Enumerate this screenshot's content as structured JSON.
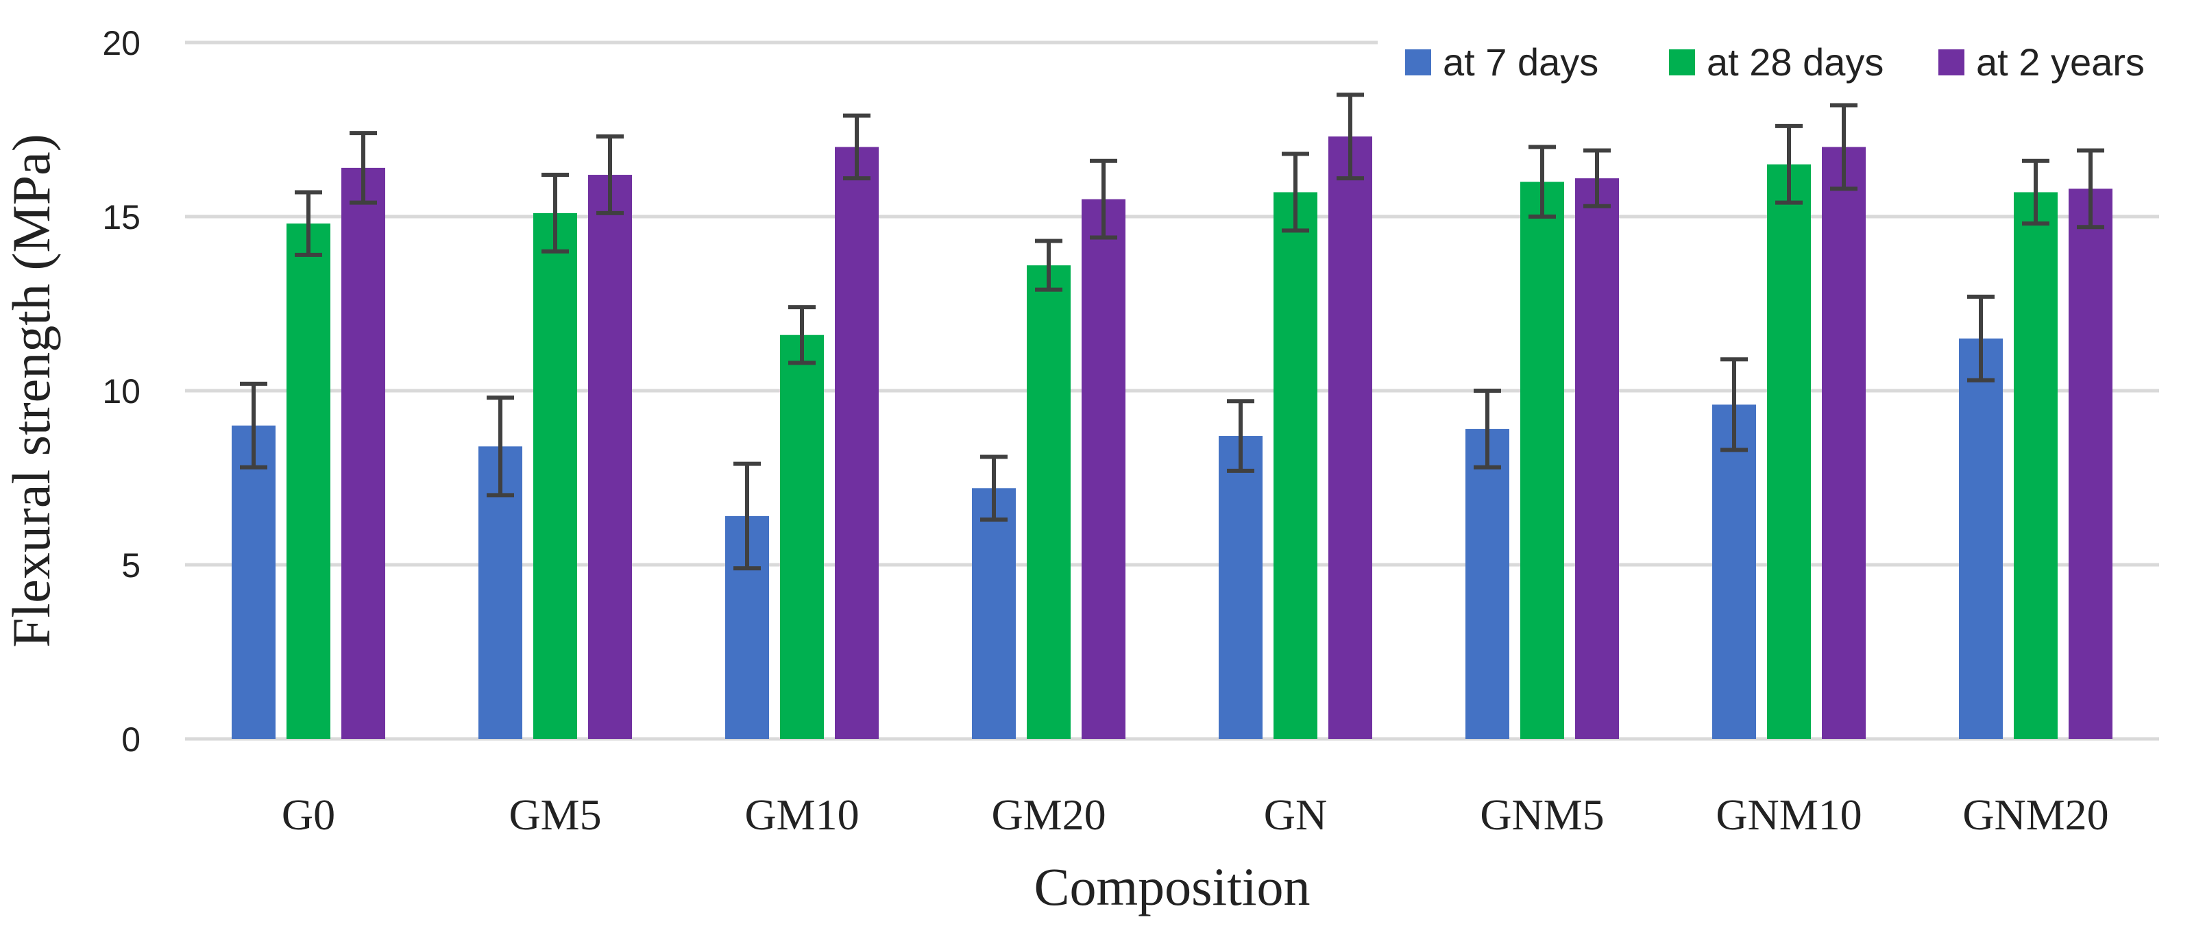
{
  "chart_data": {
    "type": "bar",
    "title": "",
    "xlabel": "Composition",
    "ylabel": "Flexural strength (MPa)",
    "ylim": [
      0,
      20
    ],
    "yticks": [
      0,
      5,
      10,
      15,
      20
    ],
    "grid": true,
    "legend_position": "top-right",
    "categories": [
      "G0",
      "GM5",
      "GM10",
      "GM20",
      "GN",
      "GNM5",
      "GNM10",
      "GNM20"
    ],
    "series": [
      {
        "name": "at 7 days",
        "color": "#4472C4",
        "values": [
          9.0,
          8.4,
          6.4,
          7.2,
          8.7,
          8.9,
          9.6,
          11.5
        ],
        "errors": [
          1.2,
          1.4,
          1.5,
          0.9,
          1.0,
          1.1,
          1.3,
          1.2
        ]
      },
      {
        "name": "at 28 days",
        "color": "#00B050",
        "values": [
          14.8,
          15.1,
          11.6,
          13.6,
          15.7,
          16.0,
          16.5,
          15.7
        ],
        "errors": [
          0.9,
          1.1,
          0.8,
          0.7,
          1.1,
          1.0,
          1.1,
          0.9
        ]
      },
      {
        "name": "at 2 years",
        "color": "#7030A0",
        "values": [
          16.4,
          16.2,
          17.0,
          15.5,
          17.3,
          16.1,
          17.0,
          15.8
        ],
        "errors": [
          1.0,
          1.1,
          0.9,
          1.1,
          1.2,
          0.8,
          1.2,
          1.1
        ]
      }
    ]
  }
}
